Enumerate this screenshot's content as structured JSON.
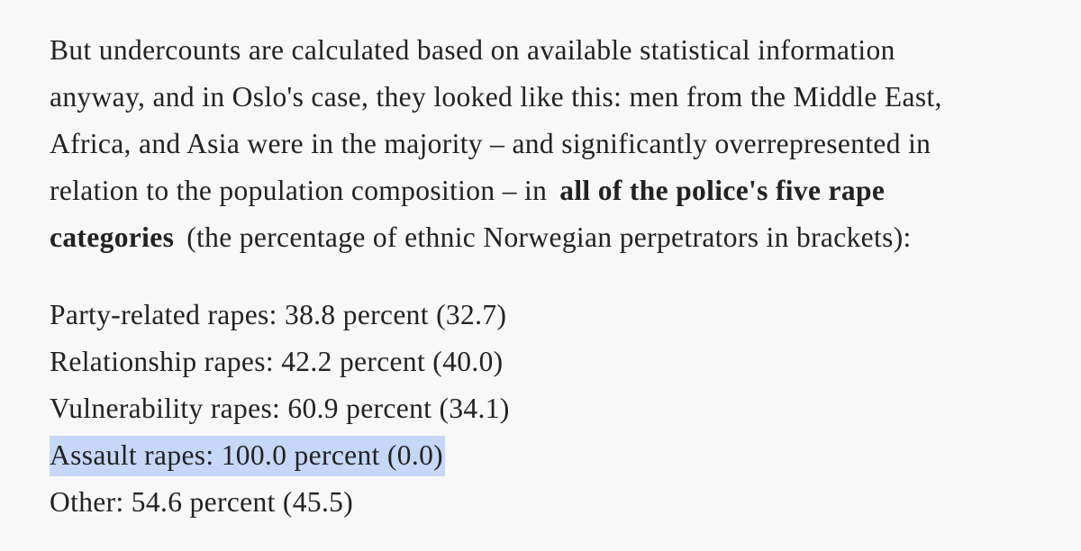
{
  "paragraph": [
    [
      "But undercounts are calculated based on available statistical information"
    ],
    [
      "anyway, and in Oslo's case, they looked like this: men from the Middle East,"
    ],
    [
      "Africa, and Asia were in the majority – and significantly overrepresented in"
    ],
    [
      "relation to the population composition – in",
      {
        "bold": "all of the police's five rape"
      }
    ],
    [
      {
        "bold": "categories"
      },
      "(the percentage of ethnic Norwegian perpetrators in brackets):"
    ]
  ],
  "list": [
    "Party-related rapes: 38.8 percent (32.7)",
    "Relationship rapes: 42.2 percent (40.0)",
    "Vulnerability rapes: 60.9 percent (34.1)",
    "Assault rapes: 100.0 percent (0.0)",
    "Other: 54.6 percent (45.5)"
  ]
}
